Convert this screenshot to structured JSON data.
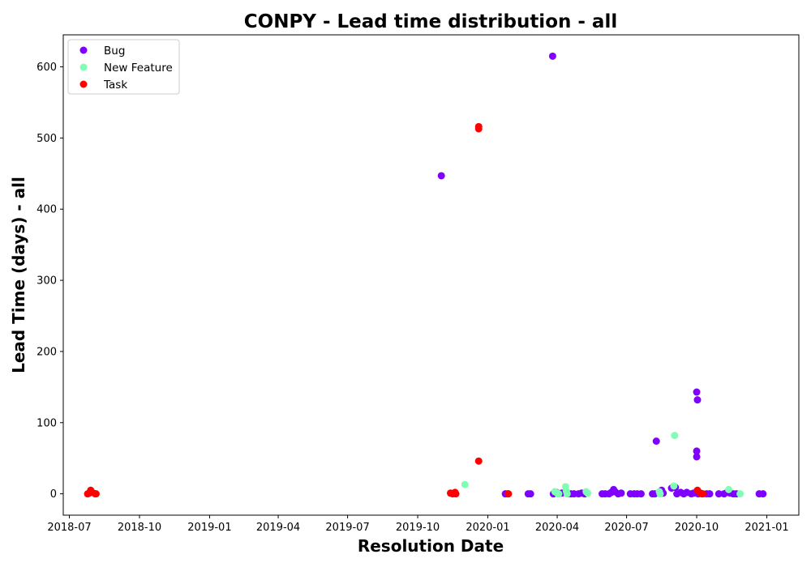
{
  "chart_data": {
    "type": "scatter",
    "title": "CONPY - Lead time distribution - all",
    "xlabel": "Resolution Date",
    "ylabel": "Lead Time (days) - all",
    "xlim": [
      "2018-06-23",
      "2021-02-12"
    ],
    "ylim": [
      -30,
      645
    ],
    "x_ticks": [
      "2018-07",
      "2018-10",
      "2019-01",
      "2019-04",
      "2019-07",
      "2019-10",
      "2020-01",
      "2020-04",
      "2020-07",
      "2020-10",
      "2021-01"
    ],
    "y_ticks": [
      0,
      100,
      200,
      300,
      400,
      500,
      600
    ],
    "grid": false,
    "legend_position": "top-left",
    "series": [
      {
        "name": "Bug",
        "color": "#8000ff",
        "points": [
          [
            "2019-11-01",
            447
          ],
          [
            "2020-01-24",
            0
          ],
          [
            "2020-01-27",
            0
          ],
          [
            "2020-02-23",
            0
          ],
          [
            "2020-02-26",
            0
          ],
          [
            "2020-03-26",
            615
          ],
          [
            "2020-03-27",
            0
          ],
          [
            "2020-03-31",
            2
          ],
          [
            "2020-04-03",
            0
          ],
          [
            "2020-04-07",
            1
          ],
          [
            "2020-04-15",
            0
          ],
          [
            "2020-04-19",
            0
          ],
          [
            "2020-04-23",
            0
          ],
          [
            "2020-04-29",
            0
          ],
          [
            "2020-05-03",
            1
          ],
          [
            "2020-05-07",
            0
          ],
          [
            "2020-05-30",
            0
          ],
          [
            "2020-06-03",
            0
          ],
          [
            "2020-06-08",
            0
          ],
          [
            "2020-06-11",
            2
          ],
          [
            "2020-06-14",
            6
          ],
          [
            "2020-06-16",
            3
          ],
          [
            "2020-06-20",
            0
          ],
          [
            "2020-06-24",
            1
          ],
          [
            "2020-07-06",
            0
          ],
          [
            "2020-07-11",
            0
          ],
          [
            "2020-07-15",
            0
          ],
          [
            "2020-07-20",
            0
          ],
          [
            "2020-08-04",
            0
          ],
          [
            "2020-08-07",
            0
          ],
          [
            "2020-08-09",
            74
          ],
          [
            "2020-08-13",
            2
          ],
          [
            "2020-08-16",
            5
          ],
          [
            "2020-08-18",
            1
          ],
          [
            "2020-08-29",
            8
          ],
          [
            "2020-09-03",
            9
          ],
          [
            "2020-09-05",
            0
          ],
          [
            "2020-09-10",
            2
          ],
          [
            "2020-09-14",
            0
          ],
          [
            "2020-09-18",
            2
          ],
          [
            "2020-09-24",
            0
          ],
          [
            "2020-09-27",
            1
          ],
          [
            "2020-10-01",
            143
          ],
          [
            "2020-10-02",
            132
          ],
          [
            "2020-10-01",
            60
          ],
          [
            "2020-10-01",
            52
          ],
          [
            "2020-10-03",
            0
          ],
          [
            "2020-10-08",
            0
          ],
          [
            "2020-10-14",
            0
          ],
          [
            "2020-10-18",
            0
          ],
          [
            "2020-10-30",
            0
          ],
          [
            "2020-11-06",
            0
          ],
          [
            "2020-11-10",
            2
          ],
          [
            "2020-11-14",
            1
          ],
          [
            "2020-11-18",
            0
          ],
          [
            "2020-11-22",
            0
          ],
          [
            "2020-12-22",
            0
          ],
          [
            "2020-12-27",
            0
          ]
        ]
      },
      {
        "name": "New Feature",
        "color": "#80ffb4",
        "points": [
          [
            "2019-12-02",
            13
          ],
          [
            "2020-03-29",
            3
          ],
          [
            "2020-04-01",
            1
          ],
          [
            "2020-04-03",
            0
          ],
          [
            "2020-04-12",
            10
          ],
          [
            "2020-04-13",
            4
          ],
          [
            "2020-04-14",
            0
          ],
          [
            "2020-05-09",
            3
          ],
          [
            "2020-05-11",
            1
          ],
          [
            "2020-08-13",
            3
          ],
          [
            "2020-08-14",
            0
          ],
          [
            "2020-09-02",
            82
          ],
          [
            "2020-09-01",
            11
          ],
          [
            "2020-11-12",
            6
          ],
          [
            "2020-11-27",
            0
          ]
        ]
      },
      {
        "name": "Task",
        "color": "#ff0000",
        "points": [
          [
            "2018-07-25",
            0
          ],
          [
            "2018-07-27",
            1
          ],
          [
            "2018-07-29",
            5
          ],
          [
            "2018-07-31",
            2
          ],
          [
            "2018-08-04",
            0
          ],
          [
            "2018-08-05",
            0
          ],
          [
            "2019-11-13",
            1
          ],
          [
            "2019-11-16",
            0
          ],
          [
            "2019-11-19",
            2
          ],
          [
            "2019-11-20",
            0
          ],
          [
            "2019-12-20",
            46
          ],
          [
            "2019-12-20",
            513
          ],
          [
            "2019-12-20",
            516
          ],
          [
            "2020-01-28",
            0
          ],
          [
            "2020-10-02",
            5
          ],
          [
            "2020-10-06",
            1
          ],
          [
            "2020-10-09",
            0
          ]
        ]
      }
    ]
  }
}
